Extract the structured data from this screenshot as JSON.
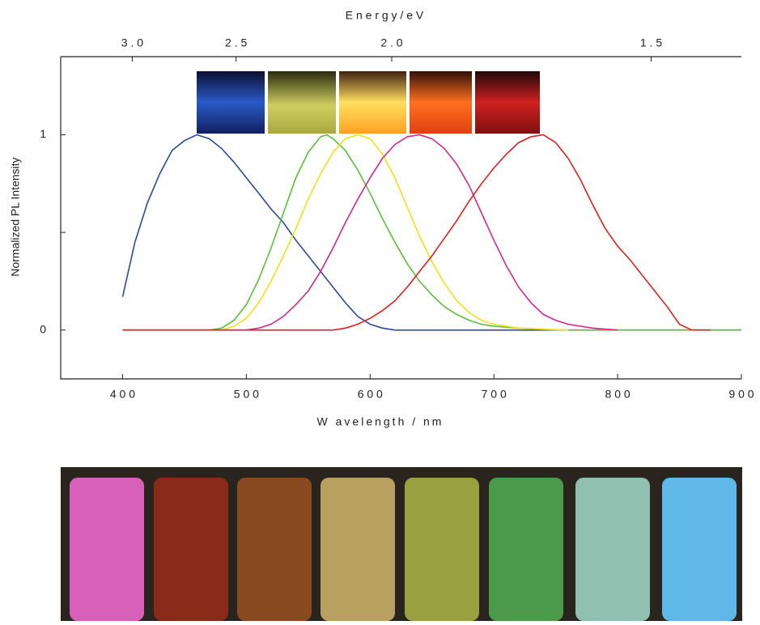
{
  "chart_data": {
    "type": "line",
    "xlabel": "W avelength / nm",
    "ylabel": "Normalized PL Intensity",
    "x2label": "E n e r g y / e V",
    "xlim": [
      350,
      900
    ],
    "xticks": [
      {
        "value": 400,
        "label": "4 0 0"
      },
      {
        "value": 500,
        "label": "5 0 0"
      },
      {
        "value": 600,
        "label": "6 0 0"
      },
      {
        "value": 700,
        "label": "7 0 0"
      },
      {
        "value": 800,
        "label": "8 0 0"
      },
      {
        "value": 900,
        "label": "9 0 0"
      }
    ],
    "ylim": [
      -0.25,
      1.4
    ],
    "yticks": [
      0,
      {
        "value": 0.5,
        "label": null
      },
      1
    ],
    "x2lim": [
      3.48,
      1.38
    ],
    "x2scale": "reciprocal",
    "x2ticks": [
      {
        "value": 3,
        "label": "3 . 0"
      },
      {
        "value": 2.5,
        "label": "2 . 5"
      },
      {
        "value": 2,
        "label": "2 . 0"
      },
      {
        "value": 1.5,
        "label": "1 . 5"
      }
    ],
    "series": [
      {
        "color": "#2c4a9a",
        "x": [
          400,
          410,
          420,
          430,
          440,
          450,
          460,
          470,
          480,
          490,
          500,
          510,
          520,
          530,
          540,
          550,
          560,
          570,
          580,
          590,
          600,
          610,
          620,
          900
        ],
        "values": [
          0.17,
          0.45,
          0.65,
          0.8,
          0.92,
          0.97,
          1.0,
          0.98,
          0.93,
          0.86,
          0.78,
          0.7,
          0.62,
          0.55,
          0.46,
          0.38,
          0.3,
          0.22,
          0.14,
          0.07,
          0.03,
          0.01,
          0,
          0
        ]
      },
      {
        "color": "#5cbf3a",
        "x": [
          400,
          470,
          480,
          490,
          500,
          510,
          520,
          530,
          540,
          550,
          560,
          565,
          570,
          580,
          590,
          600,
          610,
          620,
          630,
          640,
          650,
          660,
          670,
          680,
          690,
          700,
          720,
          750,
          900
        ],
        "values": [
          0,
          0,
          0.01,
          0.05,
          0.13,
          0.26,
          0.42,
          0.6,
          0.78,
          0.91,
          0.99,
          1.0,
          0.98,
          0.92,
          0.82,
          0.7,
          0.57,
          0.45,
          0.34,
          0.25,
          0.18,
          0.12,
          0.08,
          0.05,
          0.03,
          0.02,
          0.01,
          0,
          0
        ]
      },
      {
        "color": "#f2e01c",
        "x": [
          400,
          480,
          490,
          500,
          510,
          520,
          530,
          540,
          550,
          560,
          570,
          580,
          590,
          600,
          610,
          620,
          630,
          640,
          650,
          660,
          670,
          680,
          690,
          700,
          720,
          760
        ],
        "values": [
          0,
          0,
          0.02,
          0.06,
          0.14,
          0.25,
          0.38,
          0.52,
          0.67,
          0.8,
          0.91,
          0.98,
          1.0,
          0.98,
          0.9,
          0.78,
          0.63,
          0.48,
          0.35,
          0.24,
          0.15,
          0.09,
          0.05,
          0.03,
          0.01,
          0
        ]
      },
      {
        "color": "#d6288a",
        "x": [
          400,
          500,
          510,
          520,
          530,
          540,
          550,
          560,
          570,
          580,
          590,
          600,
          610,
          620,
          630,
          640,
          650,
          660,
          670,
          680,
          690,
          700,
          710,
          720,
          730,
          740,
          750,
          760,
          780,
          800
        ],
        "values": [
          0,
          0,
          0.01,
          0.03,
          0.07,
          0.13,
          0.2,
          0.3,
          0.42,
          0.55,
          0.67,
          0.78,
          0.88,
          0.95,
          0.99,
          1.0,
          0.98,
          0.93,
          0.85,
          0.74,
          0.6,
          0.46,
          0.33,
          0.22,
          0.14,
          0.08,
          0.05,
          0.03,
          0.01,
          0
        ]
      },
      {
        "color": "#e02020",
        "x": [
          400,
          570,
          580,
          590,
          600,
          610,
          620,
          630,
          640,
          650,
          660,
          670,
          680,
          690,
          700,
          710,
          720,
          730,
          740,
          750,
          760,
          770,
          780,
          790,
          800,
          810,
          820,
          830,
          840,
          850,
          860,
          875
        ],
        "values": [
          0,
          0,
          0.01,
          0.03,
          0.06,
          0.1,
          0.15,
          0.22,
          0.3,
          0.38,
          0.47,
          0.56,
          0.66,
          0.75,
          0.83,
          0.9,
          0.96,
          0.99,
          1.0,
          0.96,
          0.88,
          0.77,
          0.64,
          0.52,
          0.43,
          0.36,
          0.28,
          0.2,
          0.12,
          0.03,
          0,
          0
        ]
      }
    ]
  }
}
